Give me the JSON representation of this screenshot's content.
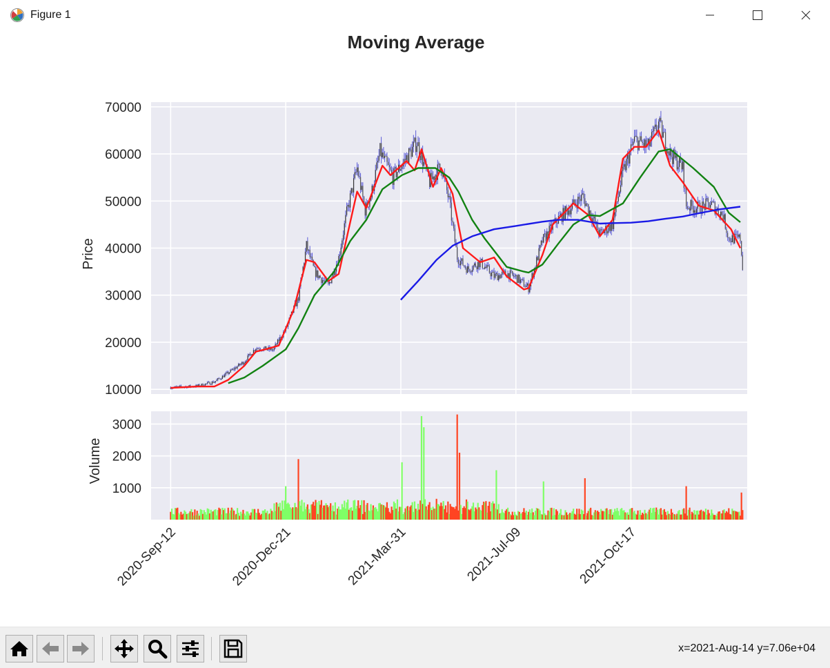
{
  "window": {
    "title": "Figure 1",
    "controls": [
      "minimize",
      "maximize",
      "close"
    ]
  },
  "toolbar": {
    "buttons": [
      {
        "name": "home",
        "icon": "home-icon"
      },
      {
        "name": "back",
        "icon": "arrow-left-icon"
      },
      {
        "name": "forward",
        "icon": "arrow-right-icon"
      },
      {
        "name": "pan",
        "icon": "move-icon"
      },
      {
        "name": "zoom",
        "icon": "magnifier-icon"
      },
      {
        "name": "configure-subplots",
        "icon": "sliders-icon"
      },
      {
        "name": "save",
        "icon": "floppy-disk-icon"
      }
    ],
    "coords_text": "x=2021-Aug-14 y=7.06e+04"
  },
  "chart_data": [
    {
      "type": "line",
      "title": "Moving Average",
      "xlabel": "",
      "ylabel": "Price",
      "ylim": [
        9000,
        71000
      ],
      "xlim": [
        "2020-Aug-26",
        "2022-Jan-26"
      ],
      "x_ticks": [
        "2020-Sep-12",
        "2020-Dec-21",
        "2021-Mar-31",
        "2021-Jul-09",
        "2021-Oct-17"
      ],
      "y_ticks": [
        10000,
        20000,
        30000,
        40000,
        50000,
        60000,
        70000
      ],
      "grid": true,
      "background": "#eaeaf2",
      "series": [
        {
          "role": "close",
          "color": "#5b5bd6",
          "style": "ohlc",
          "x": [
            "2020-Sep-12",
            "2020-Oct-05",
            "2020-Oct-20",
            "2020-Nov-01",
            "2020-Nov-15",
            "2020-Nov-25",
            "2020-Dec-10",
            "2020-Dec-21",
            "2021-Jan-01",
            "2021-Jan-08",
            "2021-Jan-15",
            "2021-Jan-27",
            "2021-Feb-05",
            "2021-Feb-12",
            "2021-Feb-21",
            "2021-Feb-28",
            "2021-Mar-05",
            "2021-Mar-13",
            "2021-Mar-24",
            "2021-Apr-03",
            "2021-Apr-14",
            "2021-Apr-25",
            "2021-May-05",
            "2021-May-12",
            "2021-May-19",
            "2021-May-28",
            "2021-Jun-08",
            "2021-Jun-20",
            "2021-Jul-01",
            "2021-Jul-09",
            "2021-Jul-20",
            "2021-Aug-01",
            "2021-Aug-14",
            "2021-Aug-25",
            "2021-Sep-05",
            "2021-Sep-20",
            "2021-Oct-01",
            "2021-Oct-10",
            "2021-Oct-20",
            "2021-Nov-01",
            "2021-Nov-10",
            "2021-Nov-20",
            "2021-Dec-01",
            "2021-Dec-04",
            "2021-Dec-15",
            "2021-Dec-25",
            "2022-Jan-05",
            "2022-Jan-10",
            "2022-Jan-20",
            "2022-Jan-22"
          ],
          "y": [
            10400,
            10700,
            11600,
            13500,
            15900,
            18800,
            18400,
            22800,
            29500,
            40500,
            35000,
            32000,
            38000,
            47500,
            57000,
            48000,
            51000,
            60500,
            55000,
            58500,
            62500,
            54000,
            57500,
            50000,
            38000,
            35500,
            37000,
            34000,
            34600,
            33800,
            31500,
            41500,
            46000,
            48500,
            51000,
            43000,
            45000,
            56000,
            63000,
            61500,
            66500,
            60000,
            57000,
            49000,
            48500,
            49500,
            47000,
            42000,
            42000,
            36000
          ]
        },
        {
          "role": "ma_short",
          "color": "#ff1a1a",
          "x": [
            "2020-Sep-12",
            "2020-Oct-05",
            "2020-Oct-20",
            "2020-Nov-01",
            "2020-Nov-15",
            "2020-Nov-25",
            "2020-Dec-05",
            "2020-Dec-15",
            "2020-Dec-28",
            "2021-Jan-08",
            "2021-Jan-15",
            "2021-Jan-27",
            "2021-Feb-05",
            "2021-Feb-15",
            "2021-Feb-21",
            "2021-Mar-01",
            "2021-Mar-08",
            "2021-Mar-15",
            "2021-Mar-22",
            "2021-Apr-05",
            "2021-Apr-12",
            "2021-Apr-18",
            "2021-Apr-28",
            "2021-May-05",
            "2021-May-15",
            "2021-May-24",
            "2021-Jun-08",
            "2021-Jun-20",
            "2021-Jul-01",
            "2021-Jul-16",
            "2021-Jul-20",
            "2021-Aug-01",
            "2021-Aug-10",
            "2021-Aug-18",
            "2021-Aug-28",
            "2021-Sep-10",
            "2021-Sep-20",
            "2021-Oct-01",
            "2021-Oct-10",
            "2021-Oct-20",
            "2021-Oct-30",
            "2021-Nov-10",
            "2021-Nov-20",
            "2021-Dec-01",
            "2021-Dec-15",
            "2021-Dec-28",
            "2022-Jan-12",
            "2022-Jan-20"
          ],
          "y": [
            10300,
            10600,
            10600,
            12000,
            15000,
            18000,
            18600,
            19300,
            27000,
            37500,
            37000,
            33000,
            34500,
            45500,
            52000,
            48500,
            53000,
            57500,
            55500,
            58500,
            56500,
            61000,
            53000,
            57000,
            51500,
            40000,
            37000,
            38000,
            34000,
            31200,
            31500,
            38500,
            45000,
            47000,
            49500,
            47000,
            42500,
            46000,
            59000,
            61500,
            61500,
            65000,
            57500,
            54000,
            49000,
            48000,
            44000,
            40000
          ]
        },
        {
          "role": "ma_medium",
          "color": "#128212",
          "x": [
            "2020-Nov-01",
            "2020-Nov-15",
            "2020-Dec-01",
            "2020-Dec-21",
            "2021-Jan-01",
            "2021-Jan-15",
            "2021-Feb-01",
            "2021-Feb-15",
            "2021-Mar-01",
            "2021-Mar-15",
            "2021-Apr-01",
            "2021-Apr-15",
            "2021-Apr-30",
            "2021-May-12",
            "2021-May-20",
            "2021-Jun-01",
            "2021-Jun-12",
            "2021-Jul-01",
            "2021-Jul-16",
            "2021-Jul-20",
            "2021-Aug-01",
            "2021-Aug-15",
            "2021-Aug-28",
            "2021-Sep-10",
            "2021-Sep-20",
            "2021-Oct-10",
            "2021-Oct-25",
            "2021-Nov-10",
            "2021-Nov-20",
            "2021-Dec-10",
            "2021-Dec-28",
            "2022-Jan-10",
            "2022-Jan-20"
          ],
          "y": [
            11300,
            12500,
            15000,
            18500,
            23000,
            30000,
            35000,
            41500,
            46000,
            52500,
            55500,
            57000,
            57000,
            55000,
            52000,
            46000,
            42000,
            36000,
            35000,
            34800,
            36500,
            41000,
            45000,
            47000,
            46800,
            49500,
            55000,
            60500,
            61000,
            57000,
            53000,
            47500,
            45500
          ]
        },
        {
          "role": "ma_long",
          "color": "#1a1ae6",
          "x": [
            "2021-Mar-31",
            "2021-Apr-15",
            "2021-May-01",
            "2021-May-15",
            "2021-Jun-01",
            "2021-Jun-20",
            "2021-Jul-09",
            "2021-Aug-01",
            "2021-Aug-15",
            "2021-Sep-01",
            "2021-Sep-20",
            "2021-Oct-01",
            "2021-Oct-17",
            "2021-Nov-01",
            "2021-Nov-15",
            "2021-Dec-01",
            "2021-Dec-15",
            "2022-Jan-01",
            "2022-Jan-20"
          ],
          "y": [
            29000,
            33000,
            37500,
            40500,
            42500,
            44000,
            44700,
            45600,
            46000,
            46000,
            45200,
            45300,
            45400,
            45700,
            46200,
            46700,
            47400,
            48200,
            48800
          ]
        }
      ]
    },
    {
      "type": "bar",
      "ylabel": "Volume",
      "ylim": [
        0,
        3400
      ],
      "y_ticks": [
        1000,
        2000,
        3000
      ],
      "grid": true,
      "up_color": "#7fff66",
      "down_color": "#ff4422",
      "spikes": [
        {
          "x": "2020-Dec-21",
          "value": 1050
        },
        {
          "x": "2021-Jan-01",
          "value": 1900
        },
        {
          "x": "2021-Apr-01",
          "value": 1800
        },
        {
          "x": "2021-Apr-18",
          "value": 3250
        },
        {
          "x": "2021-Apr-20",
          "value": 2900
        },
        {
          "x": "2021-May-19",
          "value": 3300
        },
        {
          "x": "2021-May-21",
          "value": 2100
        },
        {
          "x": "2021-Jun-22",
          "value": 1550
        },
        {
          "x": "2021-Aug-02",
          "value": 1200
        },
        {
          "x": "2021-Sep-07",
          "value": 1300
        },
        {
          "x": "2021-Dec-04",
          "value": 1050
        },
        {
          "x": "2022-Jan-21",
          "value": 850
        }
      ]
    }
  ]
}
